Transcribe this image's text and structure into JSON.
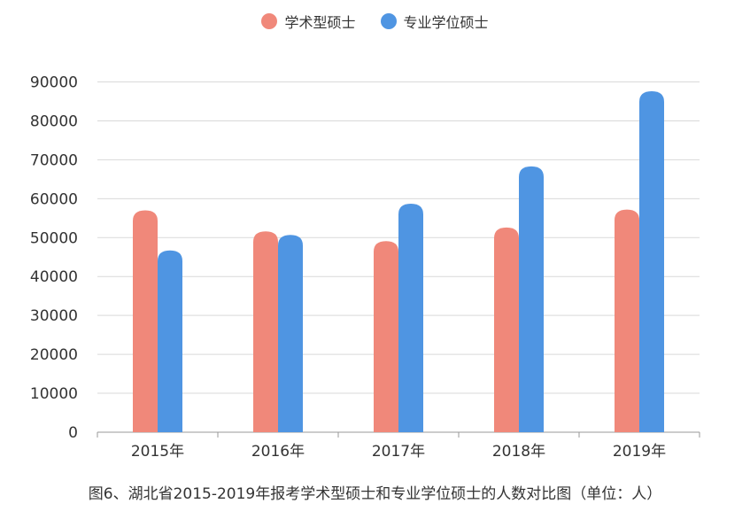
{
  "chart_data": {
    "type": "bar",
    "categories": [
      "2015年",
      "2016年",
      "2017年",
      "2018年",
      "2019年"
    ],
    "series": [
      {
        "name": "学术型硕士",
        "color": "#F0887A",
        "values": [
          57000,
          51600,
          49100,
          52600,
          57200
        ]
      },
      {
        "name": "专业学位硕士",
        "color": "#4F95E2",
        "values": [
          46700,
          50700,
          58700,
          68300,
          87600
        ]
      }
    ],
    "yticks": [
      "0",
      "10000",
      "20000",
      "30000",
      "40000",
      "50000",
      "60000",
      "70000",
      "80000",
      "90000"
    ],
    "ylim": [
      0,
      90000
    ],
    "grid": true,
    "legend": "top-center",
    "title": "图6、湖北省2015-2019年报考学术型硕士和专业学位硕士的人数对比图（单位：人）"
  }
}
